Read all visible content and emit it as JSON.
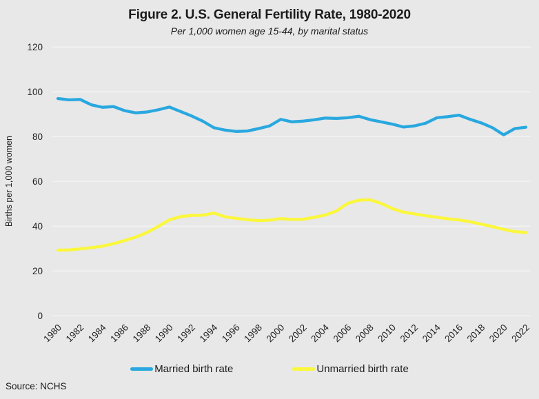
{
  "figure": {
    "title": "Figure 2. U.S. General Fertility Rate, 1980-2020",
    "subtitle": "Per 1,000 women age 15-44, by marital status",
    "source": "Source: NCHS"
  },
  "colors": {
    "background": "#e8e8e8",
    "gridline": "#f3f3f3",
    "text": "#1f1f1f",
    "married_line": "#29a8df",
    "unmarried_line": "#fbf73b"
  },
  "chart_data": {
    "type": "line",
    "title": "Figure 2. U.S. General Fertility Rate, 1980-2020",
    "subtitle": "Per 1,000 women age 15-44, by marital status",
    "xlabel": "",
    "ylabel": "Births per 1,000 women",
    "ylim": [
      0,
      120
    ],
    "ytick_step": 20,
    "grid": true,
    "legend_position": "bottom",
    "x": [
      1980,
      1981,
      1982,
      1983,
      1984,
      1985,
      1986,
      1987,
      1988,
      1989,
      1990,
      1991,
      1992,
      1993,
      1994,
      1995,
      1996,
      1997,
      1998,
      1999,
      2000,
      2001,
      2002,
      2003,
      2004,
      2005,
      2006,
      2007,
      2008,
      2009,
      2010,
      2011,
      2012,
      2013,
      2014,
      2015,
      2016,
      2017,
      2018,
      2019,
      2020,
      2021,
      2022
    ],
    "xtick_labels": [
      "1980",
      "1982",
      "1984",
      "1986",
      "1988",
      "1990",
      "1992",
      "1994",
      "1996",
      "1998",
      "2000",
      "2002",
      "2004",
      "2006",
      "2008",
      "2010",
      "2012",
      "2014",
      "2016",
      "2018",
      "2020",
      "2022"
    ],
    "series": [
      {
        "name": "Married birth rate",
        "color": "#29a8df",
        "values": [
          97.0,
          96.4,
          96.6,
          94.2,
          93.1,
          93.4,
          91.6,
          90.6,
          91.0,
          92.0,
          93.2,
          91.2,
          89.2,
          86.9,
          84.0,
          82.9,
          82.3,
          82.5,
          83.6,
          84.8,
          87.7,
          86.6,
          86.9,
          87.5,
          88.3,
          88.1,
          88.4,
          89.1,
          87.6,
          86.6,
          85.6,
          84.3,
          84.8,
          86.0,
          88.4,
          88.9,
          89.6,
          87.7,
          86.1,
          84.0,
          80.8,
          83.6,
          84.2
        ]
      },
      {
        "name": "Unmarried birth rate",
        "color": "#fbf73b",
        "values": [
          29.3,
          29.4,
          29.9,
          30.4,
          31.1,
          32.2,
          33.6,
          35.2,
          37.2,
          39.9,
          42.8,
          44.3,
          44.8,
          44.9,
          45.9,
          44.2,
          43.5,
          42.9,
          42.5,
          42.7,
          43.4,
          43.0,
          43.1,
          44.0,
          45.0,
          46.8,
          50.2,
          51.6,
          51.8,
          50.2,
          47.9,
          46.3,
          45.5,
          44.7,
          44.0,
          43.3,
          42.8,
          42.0,
          40.9,
          39.8,
          38.6,
          37.6,
          37.2
        ]
      }
    ],
    "source": "Source: NCHS"
  }
}
